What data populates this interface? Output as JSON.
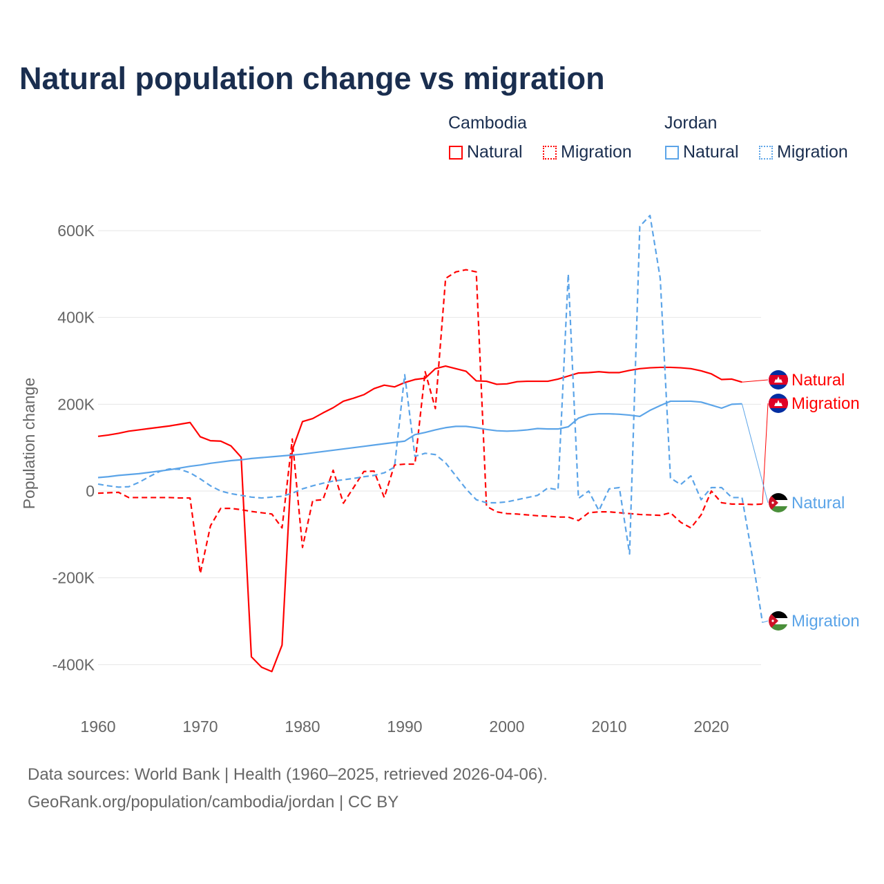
{
  "chart_data": {
    "type": "line",
    "title": "Natural population change vs migration",
    "xlabel": "",
    "ylabel": "Population change",
    "xlim": [
      1960,
      2025
    ],
    "ylim": [
      -500000,
      650000
    ],
    "x_ticks": [
      1960,
      1970,
      1980,
      1990,
      2000,
      2010,
      2020
    ],
    "x_tick_labels": [
      "1960",
      "1970",
      "1980",
      "1990",
      "2000",
      "2010",
      "2020"
    ],
    "y_ticks": [
      -400000,
      -200000,
      0,
      200000,
      400000,
      600000
    ],
    "y_tick_labels": [
      "-400K",
      "-200K",
      "0",
      "200K",
      "400K",
      "600K"
    ],
    "grid": true,
    "legend": {
      "placement": "top-right",
      "groups": [
        {
          "label": "Cambodia",
          "items": [
            "Natural",
            "Migration"
          ]
        },
        {
          "label": "Jordan",
          "items": [
            "Natural",
            "Migration"
          ]
        }
      ]
    },
    "series": [
      {
        "name": "Cambodia Natural",
        "country": "Cambodia",
        "kind": "Natural",
        "end_label": "Natural",
        "color": "#ff0000",
        "dashed": false,
        "start_year": 1960,
        "values": [
          126,
          129,
          133,
          138,
          141,
          144,
          147,
          150,
          154,
          158,
          125,
          116,
          115,
          104,
          78,
          -382,
          -406,
          -416,
          -355,
          95,
          160,
          167,
          180,
          192,
          207,
          214,
          222,
          236,
          244,
          240,
          250,
          257,
          260,
          282,
          288,
          282,
          276,
          254,
          253,
          246,
          247,
          252,
          253,
          253,
          253,
          258,
          265,
          272,
          273,
          275,
          273,
          273,
          278,
          282,
          284,
          285,
          285,
          284,
          282,
          277,
          270,
          257,
          258,
          251
        ]
      },
      {
        "name": "Cambodia Migration",
        "country": "Cambodia",
        "kind": "Migration",
        "end_label": "Migration",
        "color": "#ff0000",
        "dashed": true,
        "start_year": 1960,
        "values": [
          -5,
          -4,
          -3,
          -15,
          -15,
          -15,
          -15,
          -15,
          -16,
          -16,
          -190,
          -80,
          -40,
          -40,
          -43,
          -47,
          -50,
          -53,
          -85,
          120,
          -130,
          -22,
          -20,
          48,
          -28,
          8,
          45,
          46,
          -15,
          60,
          62,
          62,
          275,
          190,
          490,
          505,
          510,
          505,
          -35,
          -48,
          -52,
          -53,
          -55,
          -57,
          -58,
          -60,
          -60,
          -68,
          -50,
          -48,
          -48,
          -50,
          -52,
          -54,
          -55,
          -56,
          -50,
          -72,
          -85,
          -55,
          0,
          -27,
          -30,
          -30,
          -31,
          -30
        ]
      },
      {
        "name": "Jordan Natural",
        "country": "Jordan",
        "kind": "Natural",
        "end_label": "Natural",
        "color": "#5ba4e8",
        "dashed": false,
        "start_year": 1960,
        "values": [
          31,
          33,
          36,
          38,
          40,
          43,
          46,
          49,
          53,
          57,
          60,
          64,
          67,
          70,
          72,
          75,
          77,
          79,
          81,
          83,
          85,
          88,
          91,
          94,
          97,
          100,
          103,
          106,
          109,
          112,
          115,
          130,
          135,
          141,
          146,
          149,
          149,
          146,
          142,
          139,
          138,
          139,
          141,
          144,
          143,
          143,
          148,
          168,
          176,
          178,
          178,
          177,
          175,
          172,
          186,
          197,
          207,
          207,
          207,
          205,
          198,
          191,
          200,
          201
        ]
      },
      {
        "name": "Jordan Migration",
        "country": "Jordan",
        "kind": "Migration",
        "end_label": "Migration",
        "color": "#5ba4e8",
        "dashed": true,
        "start_year": 1960,
        "values": [
          16,
          12,
          9,
          10,
          20,
          33,
          45,
          51,
          50,
          42,
          28,
          12,
          0,
          -6,
          -10,
          -14,
          -16,
          -14,
          -12,
          -5,
          5,
          12,
          18,
          23,
          26,
          29,
          33,
          36,
          42,
          55,
          268,
          80,
          87,
          84,
          65,
          35,
          5,
          -20,
          -27,
          -27,
          -25,
          -20,
          -15,
          -10,
          7,
          3,
          500,
          -17,
          0,
          -45,
          5,
          8,
          -145,
          610,
          635,
          490,
          30,
          15,
          35,
          -20,
          8,
          8,
          -15,
          -15,
          -150,
          -303
        ]
      }
    ],
    "value_unit": "thousands"
  },
  "footer": {
    "line1": "Data sources: World Bank | Health (1960–2025, retrieved 2026-04-06).",
    "line2": "GeoRank.org/population/cambodia/jordan | CC BY"
  }
}
